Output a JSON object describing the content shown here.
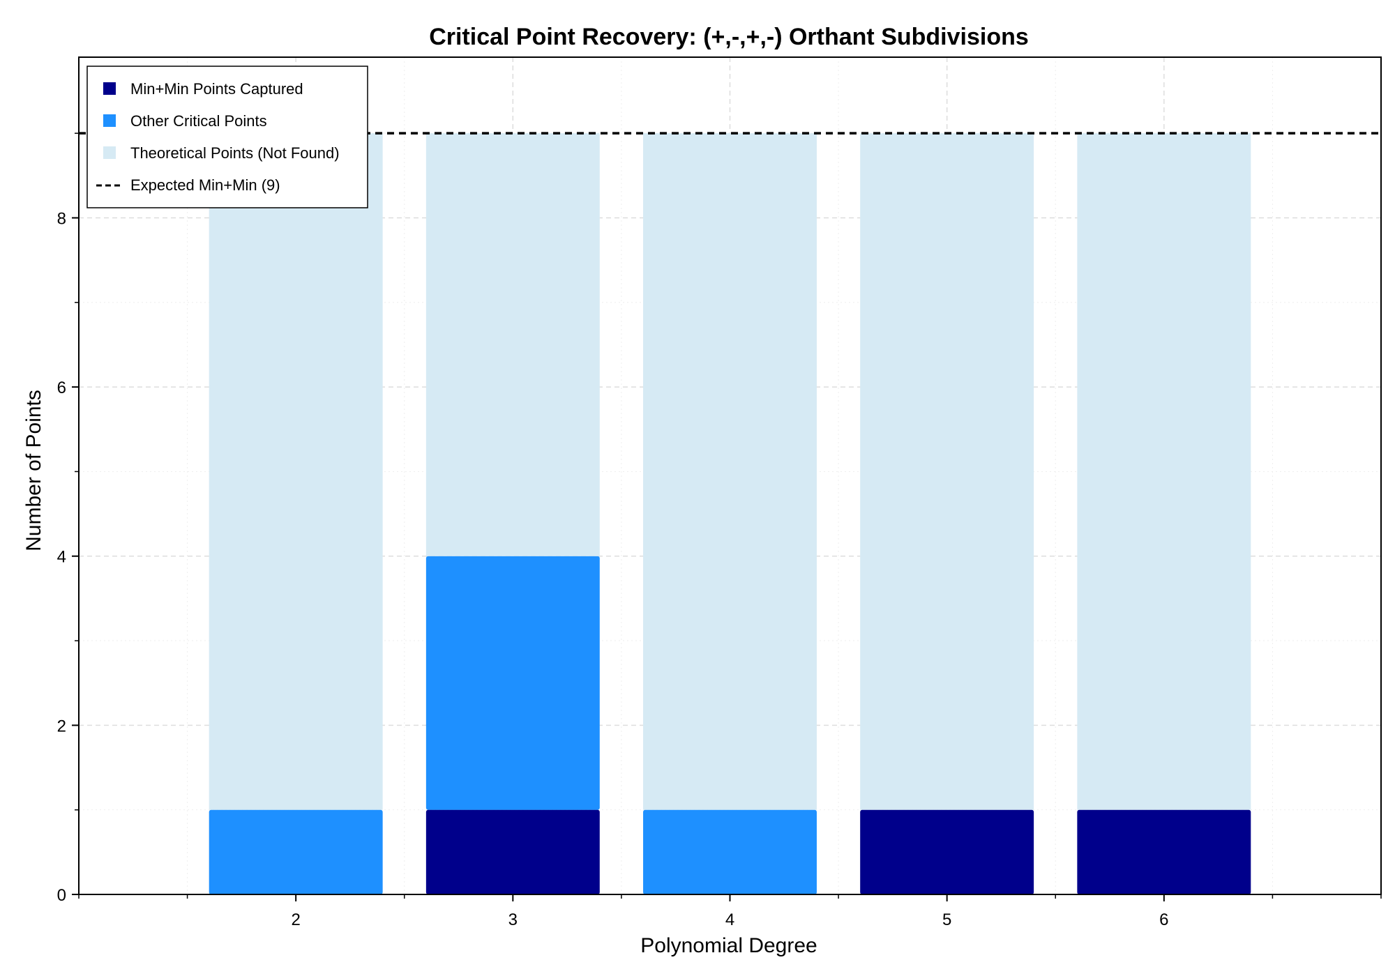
{
  "chart_data": {
    "type": "bar",
    "title": "Critical Point Recovery: (+,-,+,-) Orthant Subdivisions",
    "xlabel": "Polynomial Degree",
    "ylabel": "Number of Points",
    "categories": [
      "2",
      "3",
      "4",
      "5",
      "6"
    ],
    "x": [
      2,
      3,
      4,
      5,
      6
    ],
    "xlim": [
      1,
      7
    ],
    "ylim": [
      0,
      9.9
    ],
    "yticks": [
      0,
      2,
      4,
      6,
      8
    ],
    "stacked": true,
    "grid": true,
    "legend_position": "top-left",
    "series": [
      {
        "name": "Min+Min Points Captured",
        "values": [
          0,
          1,
          0,
          1,
          1
        ],
        "color": "#00008b"
      },
      {
        "name": "Other Critical Points",
        "values": [
          1,
          3,
          1,
          0,
          0
        ],
        "color": "#1e90ff"
      },
      {
        "name": "Theoretical Points (Not Found)",
        "values": [
          8,
          5,
          8,
          8,
          8
        ],
        "color": "#d6eaf4"
      }
    ],
    "reference_line": {
      "name": "Expected Min+Min (9)",
      "y": 9,
      "style": "dashed",
      "color": "#000000"
    }
  }
}
